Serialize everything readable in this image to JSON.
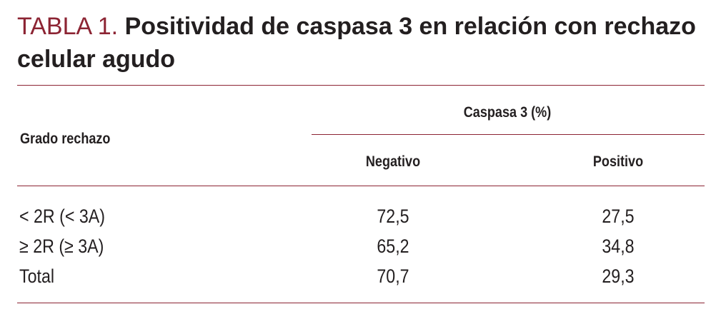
{
  "table": {
    "title_label": "TABLA 1.",
    "title_text": "Positividad de caspasa 3 en relación con rechazo celular agudo",
    "row_header": "Grado rechazo",
    "group_header": "Caspasa 3 (%)",
    "columns": [
      "Negativo",
      "Positivo"
    ],
    "rows": [
      {
        "label": "< 2R (< 3A)",
        "negativo": "72,5",
        "positivo": "27,5"
      },
      {
        "label": "≥ 2R (≥ 3A)",
        "negativo": "65,2",
        "positivo": "34,8"
      },
      {
        "label": "Total",
        "negativo": "70,7",
        "positivo": "29,3"
      }
    ]
  },
  "colors": {
    "accent": "#8c2433",
    "text": "#231f20"
  }
}
